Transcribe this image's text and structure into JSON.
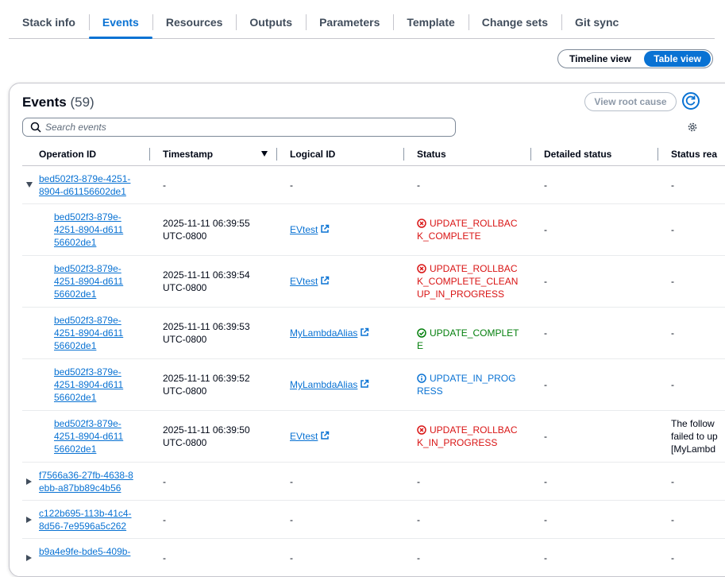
{
  "tabs": [
    "Stack info",
    "Events",
    "Resources",
    "Outputs",
    "Parameters",
    "Template",
    "Change sets",
    "Git sync"
  ],
  "active_tab": 1,
  "view_toggle": [
    "Timeline view",
    "Table view"
  ],
  "panel": {
    "title": "Events",
    "count": "(59)",
    "button": "View root cause",
    "search_placeholder": "Search events"
  },
  "table": {
    "columns": [
      "Operation ID",
      "Timestamp",
      "Logical ID",
      "Status",
      "Detailed status",
      "Status rea"
    ],
    "rows": [
      {
        "level": "parent",
        "expanded": true,
        "operation_id": "bed502f3-879e-4251-8904-d61156602de1",
        "timestamp": "-",
        "logical_id": "-",
        "status": "-",
        "status_kind": "none",
        "detailed_status": "-",
        "status_reason": "-"
      },
      {
        "level": "child",
        "operation_id": "bed502f3-879e-4251-8904-d61156602de1",
        "timestamp": "2025-11-11 06:39:55 UTC-0800",
        "logical_id": "EVtest",
        "status": "UPDATE_ROLLBACK_COMPLETE",
        "status_kind": "error",
        "detailed_status": "-",
        "status_reason": "-"
      },
      {
        "level": "child",
        "operation_id": "bed502f3-879e-4251-8904-d61156602de1",
        "timestamp": "2025-11-11 06:39:54 UTC-0800",
        "logical_id": "EVtest",
        "status": "UPDATE_ROLLBACK_COMPLETE_CLEANUP_IN_PROGRESS",
        "status_kind": "error",
        "detailed_status": "-",
        "status_reason": "-"
      },
      {
        "level": "child",
        "operation_id": "bed502f3-879e-4251-8904-d61156602de1",
        "timestamp": "2025-11-11 06:39:53 UTC-0800",
        "logical_id": "MyLambdaAlias",
        "status": "UPDATE_COMPLETE",
        "status_kind": "success",
        "detailed_status": "-",
        "status_reason": "-"
      },
      {
        "level": "child",
        "operation_id": "bed502f3-879e-4251-8904-d61156602de1",
        "timestamp": "2025-11-11 06:39:52 UTC-0800",
        "logical_id": "MyLambdaAlias",
        "status": "UPDATE_IN_PROGRESS",
        "status_kind": "info",
        "detailed_status": "-",
        "status_reason": "-"
      },
      {
        "level": "child",
        "operation_id": "bed502f3-879e-4251-8904-d61156602de1",
        "timestamp": "2025-11-11 06:39:50 UTC-0800",
        "logical_id": "EVtest",
        "status": "UPDATE_ROLLBACK_IN_PROGRESS",
        "status_kind": "error",
        "detailed_status": "-",
        "status_reason": "The follow failed to up [MyLambd"
      },
      {
        "level": "parent",
        "expanded": false,
        "operation_id": "f7566a36-27fb-4638-8ebb-a87bb89c4b56",
        "timestamp": "-",
        "logical_id": "-",
        "status": "-",
        "status_kind": "none",
        "detailed_status": "-",
        "status_reason": "-"
      },
      {
        "level": "parent",
        "expanded": false,
        "operation_id": "c122b695-113b-41c4-8d56-7e9596a5c262",
        "timestamp": "-",
        "logical_id": "-",
        "status": "-",
        "status_kind": "none",
        "detailed_status": "-",
        "status_reason": "-"
      },
      {
        "level": "parent",
        "expanded": false,
        "operation_id": "b9a4e9fe-bde5-409b-",
        "timestamp": "-",
        "logical_id": "-",
        "status": "-",
        "status_kind": "none",
        "detailed_status": "-",
        "status_reason": "-"
      }
    ]
  }
}
